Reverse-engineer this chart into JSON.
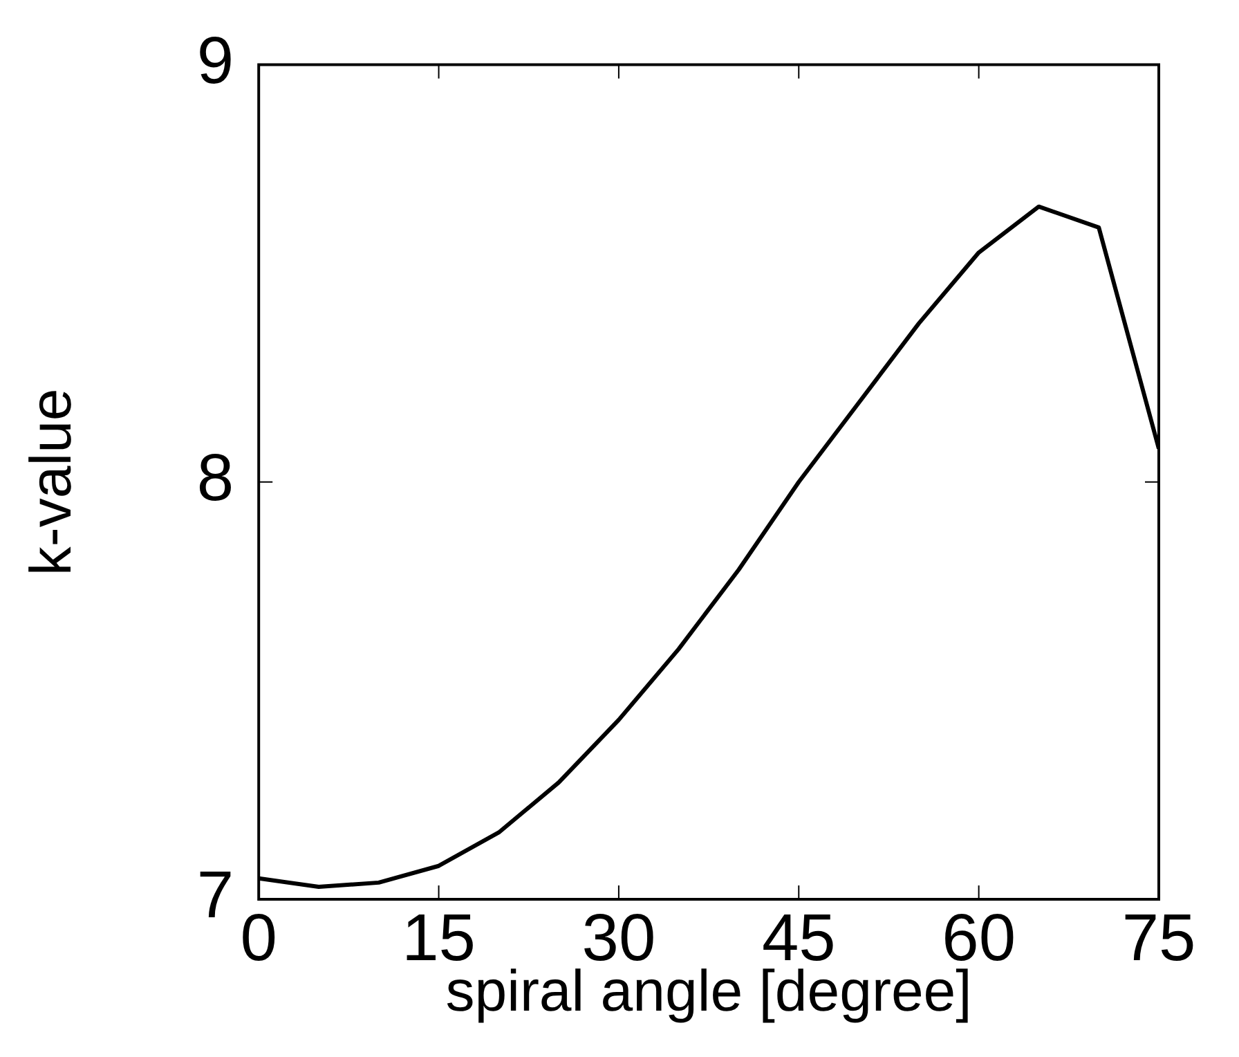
{
  "chart_data": {
    "type": "line",
    "xlabel": "spiral angle [degree]",
    "ylabel": "k-value",
    "x": [
      0,
      5,
      10,
      15,
      20,
      25,
      30,
      35,
      40,
      45,
      50,
      55,
      60,
      65,
      70,
      75
    ],
    "series": [
      {
        "color": "#000000",
        "values": [
          7.05,
          7.03,
          7.04,
          7.08,
          7.16,
          7.28,
          7.43,
          7.6,
          7.79,
          8.0,
          8.19,
          8.38,
          8.55,
          8.66,
          8.61,
          8.08
        ]
      }
    ],
    "xlim": [
      0,
      75
    ],
    "xticks": [
      0,
      15,
      30,
      45,
      60,
      75
    ],
    "ylim": [
      7,
      9
    ],
    "yticks": [
      7,
      8,
      9
    ],
    "grid": false,
    "legend": false,
    "marker": "none",
    "line_style": "solid"
  }
}
